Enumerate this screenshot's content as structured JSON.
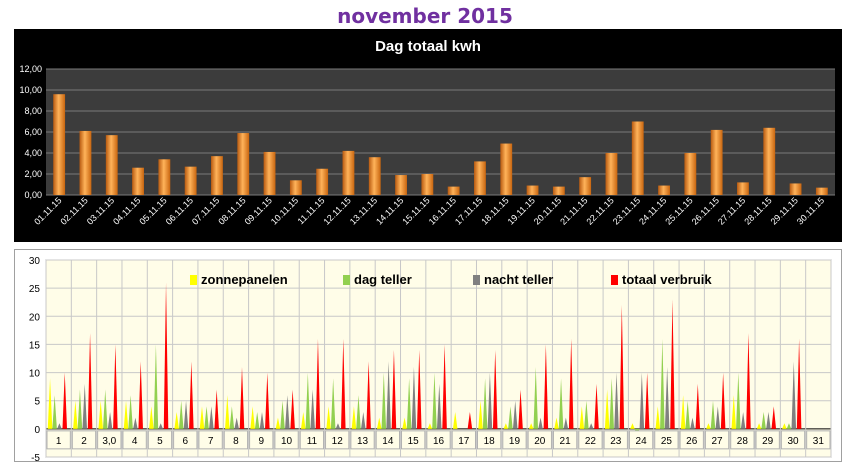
{
  "page": {
    "title": "november 2015"
  },
  "chart_data": [
    {
      "type": "bar",
      "title": "Dag totaal kwh",
      "xlabel": "",
      "ylabel": "",
      "ylim": [
        0,
        12
      ],
      "yticks": [
        "0,00",
        "2,00",
        "4,00",
        "6,00",
        "8,00",
        "10,00",
        "12,00"
      ],
      "grid": true,
      "legend": "none",
      "colors": {
        "background": "#000000",
        "plot": "#3c3c3c",
        "bar": "#f08a24",
        "text": "#ffffff"
      },
      "categories": [
        "01.11.15",
        "02.11.15",
        "03.11.15",
        "04.11.15",
        "05.11.15",
        "06.11.15",
        "07.11.15",
        "08.11.15",
        "09.11.15",
        "10.11.15",
        "11.11.15",
        "12.11.15",
        "13.11.15",
        "14.11.15",
        "15.11.15",
        "16.11.15",
        "17.11.15",
        "18.11.15",
        "19.11.15",
        "20.11.15",
        "21.11.15",
        "22.11.15",
        "23.11.15",
        "24.11.15",
        "25.11.15",
        "26.11.15",
        "27.11.15",
        "28.11.15",
        "29.11.15",
        "30.11.15"
      ],
      "values": [
        9.6,
        6.1,
        5.7,
        2.6,
        3.4,
        2.7,
        3.7,
        5.9,
        4.1,
        1.4,
        2.5,
        4.2,
        3.6,
        1.9,
        2.0,
        0.8,
        3.2,
        4.9,
        0.9,
        0.8,
        1.7,
        4.0,
        7.0,
        0.9,
        4.0,
        6.2,
        1.2,
        6.4,
        1.1,
        0.7
      ]
    },
    {
      "type": "area",
      "title": "",
      "xlabel": "",
      "ylabel": "",
      "ylim": [
        -5,
        30
      ],
      "yticks": [
        "-5",
        "0",
        "5",
        "10",
        "15",
        "20",
        "25",
        "30"
      ],
      "grid": true,
      "legend": "top",
      "colors": {
        "plot": "#fffde8",
        "grid": "#c8c8c8",
        "text": "#000000"
      },
      "categories": [
        "1",
        "2",
        "3,0",
        "4",
        "5",
        "6",
        "7",
        "8",
        "9",
        "10",
        "11",
        "12",
        "13",
        "14",
        "15",
        "16",
        "17",
        "18",
        "19",
        "20",
        "21",
        "22",
        "23",
        "24",
        "25",
        "26",
        "27",
        "28",
        "29",
        "30",
        "31"
      ],
      "series": [
        {
          "name": "zonnepanelen",
          "color": "#ffff00",
          "values": [
            9,
            5,
            5,
            5,
            4,
            3,
            4,
            6,
            4,
            2,
            3,
            4,
            4,
            2,
            2,
            1,
            3,
            5,
            1,
            1,
            2,
            4,
            7,
            1,
            4,
            6,
            1,
            6,
            1,
            1,
            0
          ]
        },
        {
          "name": "dag teller",
          "color": "#92d050",
          "values": [
            6,
            7,
            7,
            6,
            15,
            5,
            4,
            4,
            3,
            5,
            10,
            9,
            6,
            10,
            9,
            10,
            0,
            9,
            4,
            11,
            9,
            5,
            9,
            -2,
            16,
            5,
            5,
            10,
            3,
            1,
            0
          ]
        },
        {
          "name": "nacht teller",
          "color": "#808080",
          "values": [
            1,
            8,
            3,
            2,
            1,
            5,
            4,
            2,
            3,
            6,
            7,
            1,
            3,
            12,
            11,
            8,
            0,
            10,
            5,
            2,
            2,
            1,
            10,
            10,
            11,
            2,
            4,
            3,
            3,
            12,
            0
          ]
        },
        {
          "name": "totaal verbruik",
          "color": "#ff0000",
          "values": [
            10,
            17,
            15,
            12,
            26,
            12,
            7,
            11,
            10,
            7,
            16,
            16,
            12,
            14,
            14,
            15,
            3,
            14,
            7,
            15,
            16,
            8,
            22,
            10,
            23,
            8,
            10,
            17,
            4,
            16,
            0
          ]
        }
      ]
    }
  ]
}
